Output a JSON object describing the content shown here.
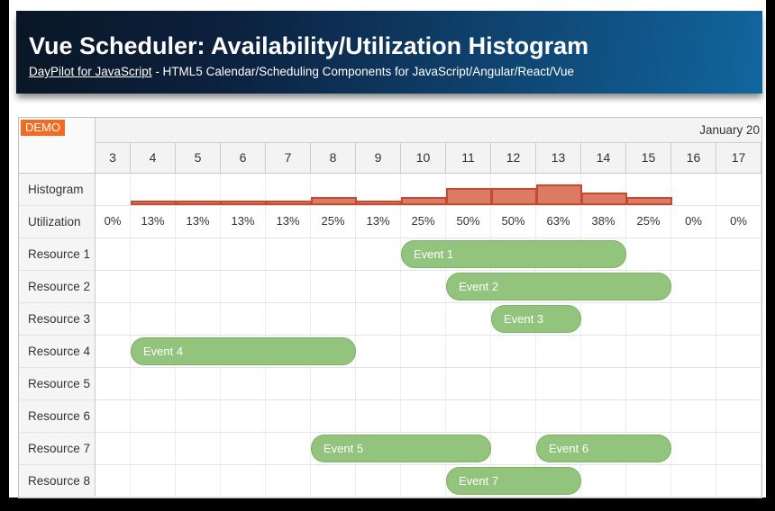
{
  "banner": {
    "title": "Vue Scheduler: Availability/Utilization Histogram",
    "link_text": "DayPilot for JavaScript",
    "subtitle_rest": " - HTML5 Calendar/Scheduling Components for JavaScript/Angular/React/Vue"
  },
  "scheduler": {
    "demo_badge": "DEMO",
    "month_label": "January 20",
    "day_columns": [
      "3",
      "4",
      "5",
      "6",
      "7",
      "8",
      "9",
      "10",
      "11",
      "12",
      "13",
      "14",
      "15",
      "16",
      "17"
    ],
    "histogram_row_label": "Histogram",
    "utilization_row_label": "Utilization",
    "histogram_values": [
      0,
      13,
      13,
      13,
      13,
      25,
      13,
      25,
      50,
      50,
      63,
      38,
      25,
      0,
      0
    ],
    "utilization_labels": [
      "0%",
      "13%",
      "13%",
      "13%",
      "13%",
      "25%",
      "13%",
      "25%",
      "50%",
      "50%",
      "63%",
      "38%",
      "25%",
      "0%",
      "0%"
    ],
    "resources": [
      {
        "label": "Resource 1",
        "events": [
          {
            "label": "Event 1",
            "start": 10,
            "end": 14
          }
        ]
      },
      {
        "label": "Resource 2",
        "events": [
          {
            "label": "Event 2",
            "start": 11,
            "end": 15
          }
        ]
      },
      {
        "label": "Resource 3",
        "events": [
          {
            "label": "Event 3",
            "start": 12,
            "end": 13
          }
        ]
      },
      {
        "label": "Resource 4",
        "events": [
          {
            "label": "Event 4",
            "start": 4,
            "end": 8
          }
        ]
      },
      {
        "label": "Resource 5",
        "events": []
      },
      {
        "label": "Resource 6",
        "events": []
      },
      {
        "label": "Resource 7",
        "events": [
          {
            "label": "Event 5",
            "start": 8,
            "end": 11
          },
          {
            "label": "Event 6",
            "start": 13,
            "end": 15
          }
        ]
      },
      {
        "label": "Resource 8",
        "events": [
          {
            "label": "Event 7",
            "start": 11,
            "end": 13
          }
        ]
      }
    ],
    "colors": {
      "demo_badge_bg": "#f26b21",
      "histogram_bar_fill": "#dc7b63",
      "histogram_bar_border": "#c64b2e",
      "event_fill": "#93c47d",
      "event_border": "#7fb066",
      "header_bg": "#f3f3f3",
      "row_header_bg": "#f5f5f5",
      "banner_gradient_left": "#0a1625",
      "banner_gradient_right": "#11669f"
    }
  }
}
